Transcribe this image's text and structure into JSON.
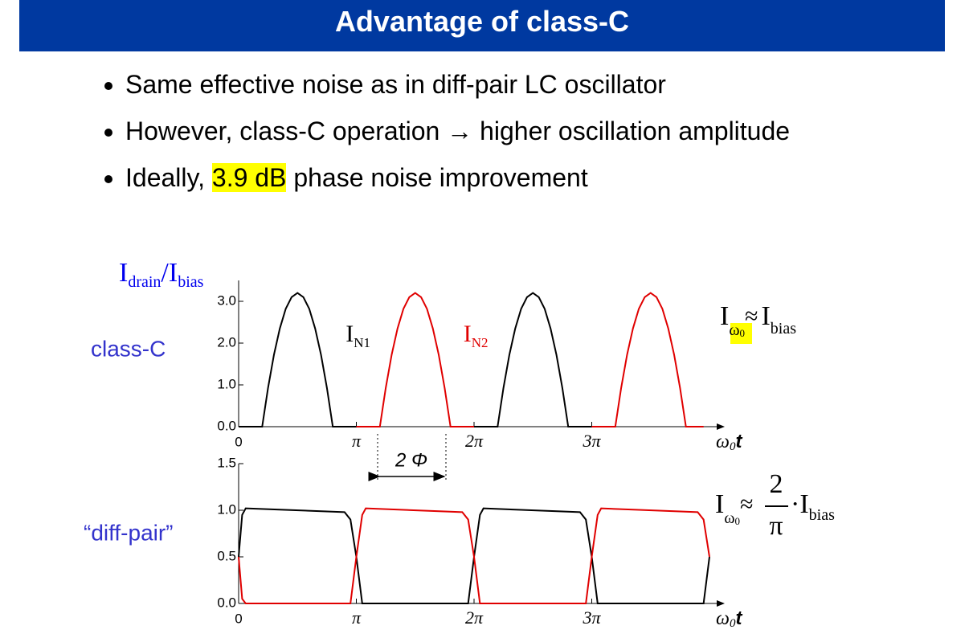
{
  "slide": {
    "title": "Advantage of class-C",
    "bullets": [
      [
        "Same effective noise as in diff-pair LC oscillator"
      ],
      [
        "However, class-C operation → higher oscillation amplitude"
      ],
      [
        "Ideally, ",
        "3.9 dB",
        " phase noise improvement"
      ]
    ]
  },
  "y_label": {
    "num": "I",
    "num_sub": "drain",
    "slash": "/",
    "den": "I",
    "den_sub": "bias"
  },
  "annotations": {
    "phase": "2 Φ",
    "formula_c": {
      "lhs": "I",
      "lhs_sub": "ω",
      "lhs_subsub": "0",
      "op": "≈",
      "rhs": "I",
      "rhs_sub": "bias"
    },
    "formula_d": {
      "lhs": "I",
      "lhs_sub": "ω",
      "lhs_subsub": "0",
      "op": "≈",
      "num": "2",
      "den": "π",
      "dot": "·",
      "rhs": "I",
      "rhs_sub": "bias"
    }
  },
  "chart_data": [
    {
      "type": "line",
      "label": "class-C",
      "x_label": {
        "symbol": "ω",
        "sub": "0",
        "var": "t"
      },
      "xlim": [
        0,
        4
      ],
      "ylim": [
        0,
        3.5
      ],
      "xticks": [
        0,
        {
          "value": 1,
          "label": "π"
        },
        {
          "value": 2,
          "label": "2π"
        },
        {
          "value": 3,
          "label": "3π"
        }
      ],
      "yticks": [
        {
          "value": 0,
          "label": "0.0"
        },
        {
          "value": 1,
          "label": "1.0"
        },
        {
          "value": 2,
          "label": "2.0"
        },
        {
          "value": 3,
          "label": "3.0"
        }
      ],
      "series": [
        {
          "name": "I",
          "sub": "N1",
          "color": "#000000",
          "x": [
            0,
            0.2,
            0.25,
            0.3,
            0.35,
            0.4,
            0.45,
            0.5,
            0.55,
            0.6,
            0.65,
            0.7,
            0.75,
            0.8,
            1,
            1.5,
            2,
            2.2,
            2.25,
            2.3,
            2.35,
            2.4,
            2.45,
            2.5,
            2.55,
            2.6,
            2.65,
            2.7,
            2.75,
            2.8,
            3
          ],
          "values": [
            0,
            0,
            0.93,
            1.72,
            2.35,
            2.82,
            3.1,
            3.2,
            3.1,
            2.82,
            2.35,
            1.72,
            0.93,
            0,
            0,
            null,
            0,
            0,
            0.93,
            1.72,
            2.35,
            2.82,
            3.1,
            3.2,
            3.1,
            2.82,
            2.35,
            1.72,
            0.93,
            0,
            0
          ]
        },
        {
          "name": "I",
          "sub": "N2",
          "color": "#e00000",
          "x": [
            1,
            1.2,
            1.25,
            1.3,
            1.35,
            1.4,
            1.45,
            1.5,
            1.55,
            1.6,
            1.65,
            1.7,
            1.75,
            1.8,
            2,
            2.5,
            3,
            3.2,
            3.25,
            3.3,
            3.35,
            3.4,
            3.45,
            3.5,
            3.55,
            3.6,
            3.65,
            3.7,
            3.75,
            3.8,
            3.95
          ],
          "values": [
            0,
            0,
            0.93,
            1.72,
            2.35,
            2.82,
            3.1,
            3.2,
            3.1,
            2.82,
            2.35,
            1.72,
            0.93,
            0,
            0,
            null,
            0,
            0,
            0.93,
            1.72,
            2.35,
            2.82,
            3.1,
            3.2,
            3.1,
            2.82,
            2.35,
            1.72,
            0.93,
            0,
            0
          ]
        }
      ]
    },
    {
      "type": "line",
      "label": "“diff-pair”",
      "x_label": {
        "symbol": "ω",
        "sub": "0",
        "var": "t"
      },
      "xlim": [
        0,
        4
      ],
      "ylim": [
        0,
        1.5
      ],
      "xticks": [
        0,
        {
          "value": 1,
          "label": "π"
        },
        {
          "value": 2,
          "label": "2π"
        },
        {
          "value": 3,
          "label": "3π"
        }
      ],
      "yticks": [
        {
          "value": 0,
          "label": "0.0"
        },
        {
          "value": 0.5,
          "label": "0.5"
        },
        {
          "value": 1,
          "label": "1.0"
        },
        {
          "value": 1.5,
          "label": "1.5"
        }
      ],
      "series": [
        {
          "color": "#000000",
          "x": [
            0,
            0.03,
            0.06,
            0.9,
            0.95,
            1.0,
            1.05,
            1.95,
            2.0,
            2.05,
            2.08,
            2.9,
            2.95,
            3.0,
            3.05,
            3.95,
            4.0
          ],
          "values": [
            0.5,
            0.95,
            1.02,
            0.98,
            0.9,
            0.5,
            0,
            0,
            0.5,
            0.95,
            1.02,
            0.98,
            0.9,
            0.5,
            0,
            0,
            0.5
          ]
        },
        {
          "color": "#e00000",
          "x": [
            0,
            0.03,
            0.06,
            0.95,
            1.0,
            1.05,
            1.08,
            1.9,
            1.95,
            2.0,
            2.05,
            2.95,
            3.0,
            3.05,
            3.08,
            3.9,
            3.95,
            4.0
          ],
          "values": [
            0.5,
            0.05,
            0,
            0,
            0.5,
            0.95,
            1.02,
            0.98,
            0.9,
            0.5,
            0,
            0,
            0.5,
            0.95,
            1.02,
            0.98,
            0.9,
            0.5
          ]
        }
      ]
    }
  ]
}
